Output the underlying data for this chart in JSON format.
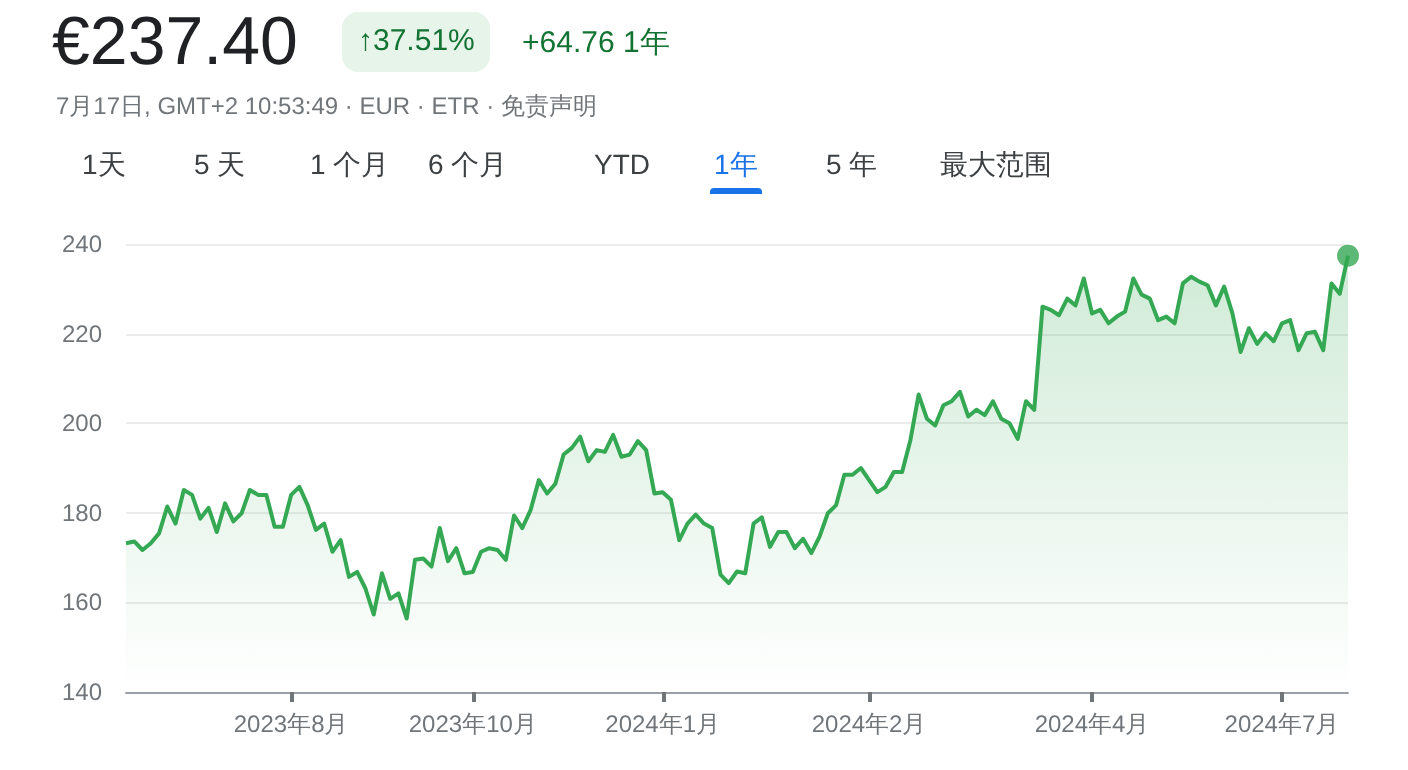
{
  "chart_data": {
    "type": "area",
    "title": "€237.40",
    "subtitle": "7月17日, GMT+2 10:53:49 · EUR · ETR · 免责声明",
    "annotations": [
      "↑37.51%",
      "+64.76 1年",
      "1天",
      "5 天",
      "1 个月",
      "6 个月",
      "YTD",
      "1年",
      "5 年",
      "最大范围"
    ],
    "categories": [
      null,
      null,
      null,
      null,
      null,
      null,
      null,
      null,
      null,
      null,
      null,
      null,
      null,
      null,
      null,
      null,
      null,
      null,
      null,
      null,
      "2023年8月",
      null,
      null,
      null,
      null,
      null,
      null,
      null,
      null,
      null,
      null,
      null,
      null,
      null,
      null,
      null,
      null,
      null,
      null,
      null,
      null,
      null,
      "2023年10月",
      null,
      null,
      null,
      null,
      null,
      null,
      null,
      null,
      null,
      null,
      null,
      null,
      null,
      null,
      null,
      null,
      null,
      null,
      null,
      null,
      null,
      null,
      "2024年1月",
      null,
      null,
      null,
      null,
      null,
      null,
      null,
      null,
      null,
      null,
      null,
      null,
      null,
      null,
      null,
      null,
      null,
      null,
      null,
      null,
      null,
      null,
      null,
      null,
      "2024年2月",
      null,
      null,
      null,
      null,
      null,
      null,
      null,
      null,
      null,
      null,
      null,
      null,
      null,
      null,
      null,
      null,
      null,
      null,
      null,
      null,
      null,
      null,
      null,
      null,
      null,
      null,
      "2024年4月",
      null,
      null,
      null,
      null,
      null,
      null,
      null,
      null,
      null,
      null,
      null,
      null,
      null,
      null,
      null,
      null,
      null,
      null,
      null,
      null,
      null,
      null,
      "2024年7月",
      null,
      null,
      null,
      null,
      null,
      null,
      null,
      null
    ],
    "ylim": [
      140,
      240
    ],
    "yticks": [
      140,
      160,
      180,
      200,
      220,
      240
    ],
    "grid": "y",
    "marker": "none",
    "series": [
      {
        "color": "#34a853",
        "values": [
          173.2,
          173.6,
          171.7,
          173.2,
          175.4,
          181.4,
          177.6,
          185.1,
          184,
          178.7,
          181.1,
          175.7,
          182.1,
          178.1,
          179.9,
          185.1,
          184,
          184,
          176.9,
          176.9,
          184,
          185.8,
          181.7,
          176.2,
          177.6,
          171.3,
          173.9,
          165.7,
          166.8,
          163.1,
          157.3,
          166.5,
          160.8,
          162,
          156.4,
          169.5,
          169.8,
          168,
          176.6,
          169.2,
          172.1,
          166.5,
          166.8,
          171.3,
          172.1,
          171.7,
          169.5,
          179.4,
          176.6,
          180.6,
          187.3,
          184.3,
          186.5,
          193,
          194.5,
          197,
          191.5,
          194,
          193.6,
          197.4,
          192.5,
          193,
          196,
          194,
          184.3,
          184.6,
          182.9,
          173.9,
          177.6,
          179.6,
          177.6,
          176.6,
          166.2,
          164.3,
          166.9,
          166.5,
          177.6,
          179,
          172.4,
          175.7,
          175.7,
          172.1,
          174.2,
          171,
          174.7,
          179.9,
          181.7,
          188.5,
          188.5,
          190,
          187.3,
          184.6,
          185.8,
          189.1,
          189.1,
          196.2,
          206.4,
          201,
          199.5,
          204,
          204.9,
          207,
          201.5,
          203,
          201.8,
          204.9,
          201,
          200,
          196.5,
          204.9,
          203,
          226,
          225.3,
          224.1,
          227.8,
          226.3,
          232.3,
          224.5,
          225.3,
          222.3,
          223.8,
          224.9,
          232.3,
          228.7,
          227.8,
          223,
          223.8,
          222.3,
          231.2,
          232.7,
          231.6,
          230.8,
          226.3,
          230.5,
          224.5,
          215.9,
          221.2,
          217.7,
          220.1,
          218.3,
          222.3,
          223,
          216.3,
          220.1,
          220.4,
          216.3,
          231.2,
          228.9,
          237.4
        ]
      },
      {
        "type": "scatter",
        "color": "#34a853",
        "marker": "circle",
        "values": [
          null,
          null,
          null,
          null,
          null,
          null,
          null,
          null,
          null,
          null,
          null,
          null,
          null,
          null,
          null,
          null,
          null,
          null,
          null,
          null,
          null,
          null,
          null,
          null,
          null,
          null,
          null,
          null,
          null,
          null,
          null,
          null,
          null,
          null,
          null,
          null,
          null,
          null,
          null,
          null,
          null,
          null,
          null,
          null,
          null,
          null,
          null,
          null,
          null,
          null,
          null,
          null,
          null,
          null,
          null,
          null,
          null,
          null,
          null,
          null,
          null,
          null,
          null,
          null,
          null,
          null,
          null,
          null,
          null,
          null,
          null,
          null,
          null,
          null,
          null,
          null,
          null,
          null,
          null,
          null,
          null,
          null,
          null,
          null,
          null,
          null,
          null,
          null,
          null,
          null,
          null,
          null,
          null,
          null,
          null,
          null,
          null,
          null,
          null,
          null,
          null,
          null,
          null,
          null,
          null,
          null,
          null,
          null,
          null,
          null,
          null,
          null,
          null,
          null,
          null,
          null,
          null,
          null,
          null,
          null,
          null,
          null,
          null,
          null,
          null,
          null,
          null,
          null,
          null,
          null,
          null,
          null,
          null,
          null,
          null,
          null,
          null,
          null,
          null,
          null,
          null,
          null,
          null,
          null,
          null,
          null,
          null,
          null,
          237.4
        ]
      }
    ]
  }
}
